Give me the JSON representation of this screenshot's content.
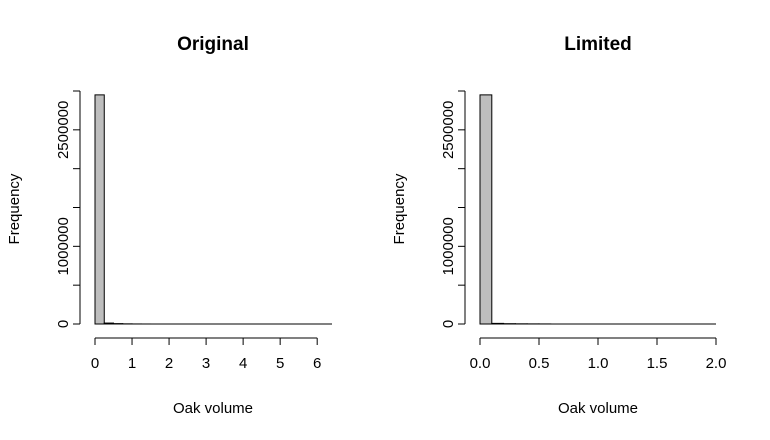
{
  "chart_data": [
    {
      "type": "bar",
      "title": "Original",
      "xlabel": "Oak volume",
      "ylabel": "Frequency",
      "xlim": [
        0,
        6.4
      ],
      "ylim": [
        0,
        3000000
      ],
      "bin_width": 0.25,
      "x_ticks": [
        0,
        1,
        2,
        3,
        4,
        5,
        6
      ],
      "x_tick_labels": [
        "0",
        "1",
        "2",
        "3",
        "4",
        "5",
        "6"
      ],
      "y_ticks": [
        0,
        500000,
        1000000,
        1500000,
        2000000,
        2500000,
        3000000
      ],
      "y_tick_labels": [
        "0",
        "",
        "1000000",
        "",
        "",
        "2500000",
        ""
      ],
      "bins": [
        {
          "start": 0.0,
          "end": 0.25,
          "count": 2950000
        },
        {
          "start": 0.25,
          "end": 0.5,
          "count": 12000
        },
        {
          "start": 0.5,
          "end": 0.75,
          "count": 5000
        },
        {
          "start": 0.75,
          "end": 1.0,
          "count": 2000
        },
        {
          "start": 1.0,
          "end": 1.25,
          "count": 800
        },
        {
          "start": 1.25,
          "end": 1.5,
          "count": 300
        }
      ],
      "grid": false,
      "bar_color": "#bebebe"
    },
    {
      "type": "bar",
      "title": "Limited",
      "xlabel": "Oak volume",
      "ylabel": "Frequency",
      "xlim": [
        0,
        2.0
      ],
      "ylim": [
        0,
        3000000
      ],
      "bin_width": 0.1,
      "x_ticks": [
        0,
        0.5,
        1.0,
        1.5,
        2.0
      ],
      "x_tick_labels": [
        "0.0",
        "0.5",
        "1.0",
        "1.5",
        "2.0"
      ],
      "y_ticks": [
        0,
        500000,
        1000000,
        1500000,
        2000000,
        2500000,
        3000000
      ],
      "y_tick_labels": [
        "0",
        "",
        "1000000",
        "",
        "",
        "2500000",
        ""
      ],
      "bins": [
        {
          "start": 0.0,
          "end": 0.1,
          "count": 2950000
        },
        {
          "start": 0.1,
          "end": 0.2,
          "count": 8000
        },
        {
          "start": 0.2,
          "end": 0.3,
          "count": 4000
        },
        {
          "start": 0.3,
          "end": 0.4,
          "count": 2500
        },
        {
          "start": 0.4,
          "end": 0.5,
          "count": 1500
        },
        {
          "start": 0.5,
          "end": 0.6,
          "count": 1000
        }
      ],
      "grid": false,
      "bar_color": "#bebebe"
    }
  ]
}
